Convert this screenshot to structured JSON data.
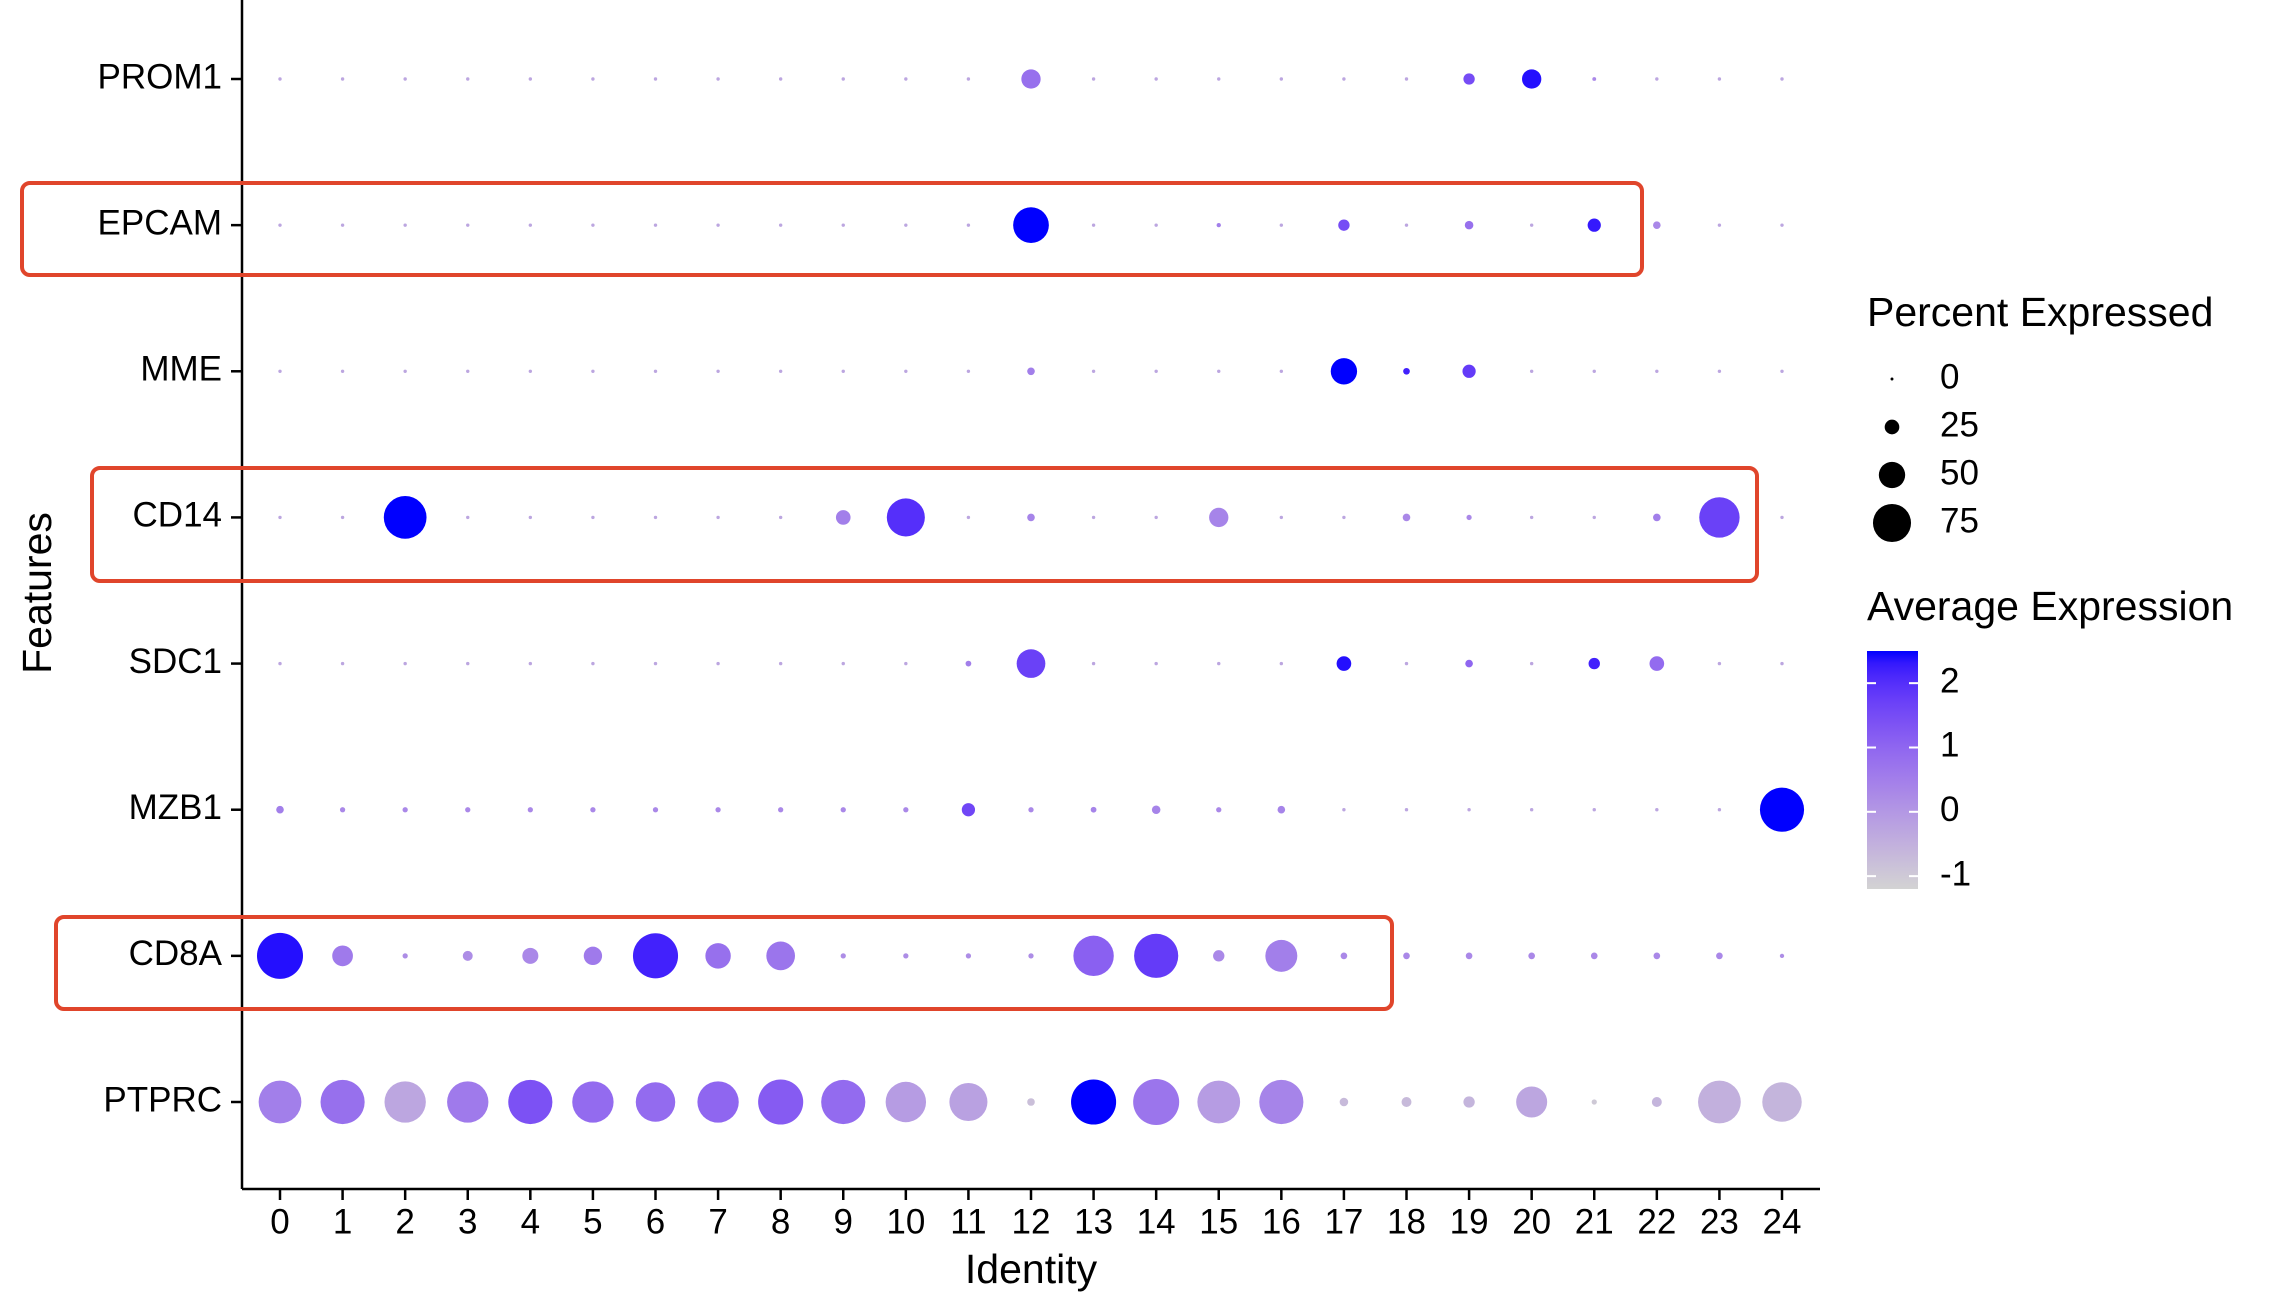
{
  "chart_data": {
    "type": "dot",
    "x_label": "Identity",
    "y_label": "Features",
    "categories": [
      "0",
      "1",
      "2",
      "3",
      "4",
      "5",
      "6",
      "7",
      "8",
      "9",
      "10",
      "11",
      "12",
      "13",
      "14",
      "15",
      "16",
      "17",
      "18",
      "19",
      "20",
      "21",
      "22",
      "23",
      "24"
    ],
    "series": [
      {
        "name": "PROM1",
        "percent": [
          1,
          1,
          1,
          1,
          1,
          1,
          1,
          1,
          1,
          1,
          1,
          1,
          35,
          1,
          1,
          1,
          1,
          1,
          1,
          18,
          35,
          2,
          1,
          1,
          1
        ],
        "avg_exp": [
          -0.3,
          -0.3,
          -0.3,
          -0.3,
          -0.3,
          -0.3,
          -0.3,
          -0.3,
          -0.3,
          -0.3,
          -0.3,
          -0.3,
          0.8,
          -0.3,
          -0.3,
          -0.3,
          -0.3,
          -0.3,
          -0.3,
          1.5,
          2.4,
          0.3,
          -0.3,
          -0.3,
          -0.3
        ]
      },
      {
        "name": "EPCAM",
        "percent": [
          1,
          1,
          1,
          1,
          1,
          1,
          1,
          1,
          1,
          1,
          1,
          1,
          70,
          1,
          1,
          3,
          1,
          18,
          1,
          12,
          1,
          22,
          10,
          1,
          1
        ],
        "avg_exp": [
          -0.3,
          -0.3,
          -0.3,
          -0.3,
          -0.3,
          -0.3,
          -0.3,
          -0.3,
          -0.3,
          -0.3,
          -0.3,
          -0.3,
          2.5,
          -0.3,
          -0.3,
          0.5,
          -0.3,
          1.5,
          -0.3,
          0.8,
          -0.3,
          2.3,
          0.3,
          -0.3,
          -0.3
        ]
      },
      {
        "name": "MME",
        "percent": [
          1,
          1,
          1,
          1,
          1,
          1,
          1,
          1,
          1,
          1,
          1,
          1,
          10,
          1,
          1,
          1,
          1,
          50,
          8,
          22,
          1,
          1,
          1,
          1,
          1
        ],
        "avg_exp": [
          -0.3,
          -0.3,
          -0.3,
          -0.3,
          -0.3,
          -0.3,
          -0.3,
          -0.3,
          -0.3,
          -0.3,
          -0.3,
          -0.3,
          0.5,
          -0.3,
          -0.3,
          -0.3,
          -0.3,
          2.5,
          2.2,
          1.8,
          -0.3,
          -0.3,
          -0.3,
          -0.3,
          -0.3
        ]
      },
      {
        "name": "CD14",
        "percent": [
          1,
          1,
          85,
          1,
          1,
          1,
          1,
          1,
          1,
          25,
          75,
          1,
          10,
          1,
          1,
          35,
          1,
          1,
          10,
          5,
          1,
          1,
          10,
          80,
          1
        ],
        "avg_exp": [
          -0.3,
          -0.3,
          2.5,
          -0.3,
          -0.3,
          -0.3,
          -0.3,
          -0.3,
          -0.3,
          0.5,
          2.0,
          -0.3,
          0.4,
          -0.3,
          -0.3,
          0.4,
          -0.3,
          -0.3,
          0.3,
          0.3,
          -0.3,
          -0.3,
          0.5,
          1.7,
          -0.3
        ]
      },
      {
        "name": "SDC1",
        "percent": [
          1,
          1,
          1,
          1,
          1,
          1,
          1,
          1,
          1,
          1,
          1,
          6,
          55,
          1,
          1,
          1,
          1,
          25,
          1,
          10,
          1,
          18,
          25,
          1,
          1
        ],
        "avg_exp": [
          -0.3,
          -0.3,
          -0.3,
          -0.3,
          -0.3,
          -0.3,
          -0.3,
          -0.3,
          -0.3,
          -0.3,
          -0.3,
          0.5,
          1.7,
          -0.3,
          -0.3,
          -0.3,
          -0.3,
          2.4,
          -0.3,
          1.0,
          -0.3,
          2.2,
          0.9,
          -0.3,
          -0.3
        ]
      },
      {
        "name": "MZB1",
        "percent": [
          10,
          5,
          5,
          5,
          5,
          5,
          5,
          5,
          5,
          5,
          5,
          22,
          5,
          6,
          12,
          5,
          10,
          1,
          1,
          1,
          1,
          1,
          1,
          1,
          88
        ],
        "avg_exp": [
          0.5,
          0.3,
          0.3,
          0.3,
          0.3,
          0.3,
          0.3,
          0.3,
          0.3,
          0.3,
          0.3,
          1.6,
          0.3,
          0.4,
          0.4,
          0.3,
          0.4,
          -0.3,
          -0.3,
          -0.3,
          -0.3,
          -0.3,
          -0.3,
          -0.3,
          2.5
        ]
      },
      {
        "name": "CD8A",
        "percent": [
          92,
          38,
          5,
          15,
          28,
          33,
          90,
          48,
          55,
          5,
          5,
          5,
          5,
          80,
          88,
          18,
          62,
          8,
          8,
          8,
          8,
          8,
          8,
          8,
          3
        ],
        "avg_exp": [
          2.4,
          0.6,
          0.2,
          0.2,
          0.3,
          0.6,
          2.2,
          0.8,
          0.7,
          0.2,
          0.2,
          0.2,
          0.2,
          1.1,
          1.8,
          0.3,
          0.5,
          0.3,
          0.3,
          0.3,
          0.3,
          0.3,
          0.3,
          0.3,
          0.2
        ]
      },
      {
        "name": "PTPRC",
        "percent": [
          85,
          88,
          82,
          82,
          88,
          82,
          78,
          82,
          90,
          88,
          80,
          75,
          10,
          90,
          92,
          85,
          88,
          12,
          15,
          18,
          60,
          5,
          15,
          85,
          78
        ],
        "avg_exp": [
          0.5,
          0.8,
          -0.3,
          0.6,
          1.4,
          0.9,
          0.9,
          1.0,
          1.2,
          0.9,
          -0.1,
          -0.2,
          -0.8,
          2.5,
          0.7,
          -0.1,
          0.4,
          -0.7,
          -0.7,
          -0.6,
          -0.3,
          -1,
          -0.6,
          -0.5,
          -0.6
        ]
      }
    ],
    "size_title": "Percent Expressed",
    "size_ticks": [
      0,
      25,
      50,
      75
    ],
    "color_title": "Average Expression",
    "colors": [
      "#D3D3D3",
      "#0000FF"
    ],
    "color_lim": [
      -1.2,
      2.5
    ],
    "color_ticks": [
      -1,
      0,
      1,
      2
    ]
  }
}
